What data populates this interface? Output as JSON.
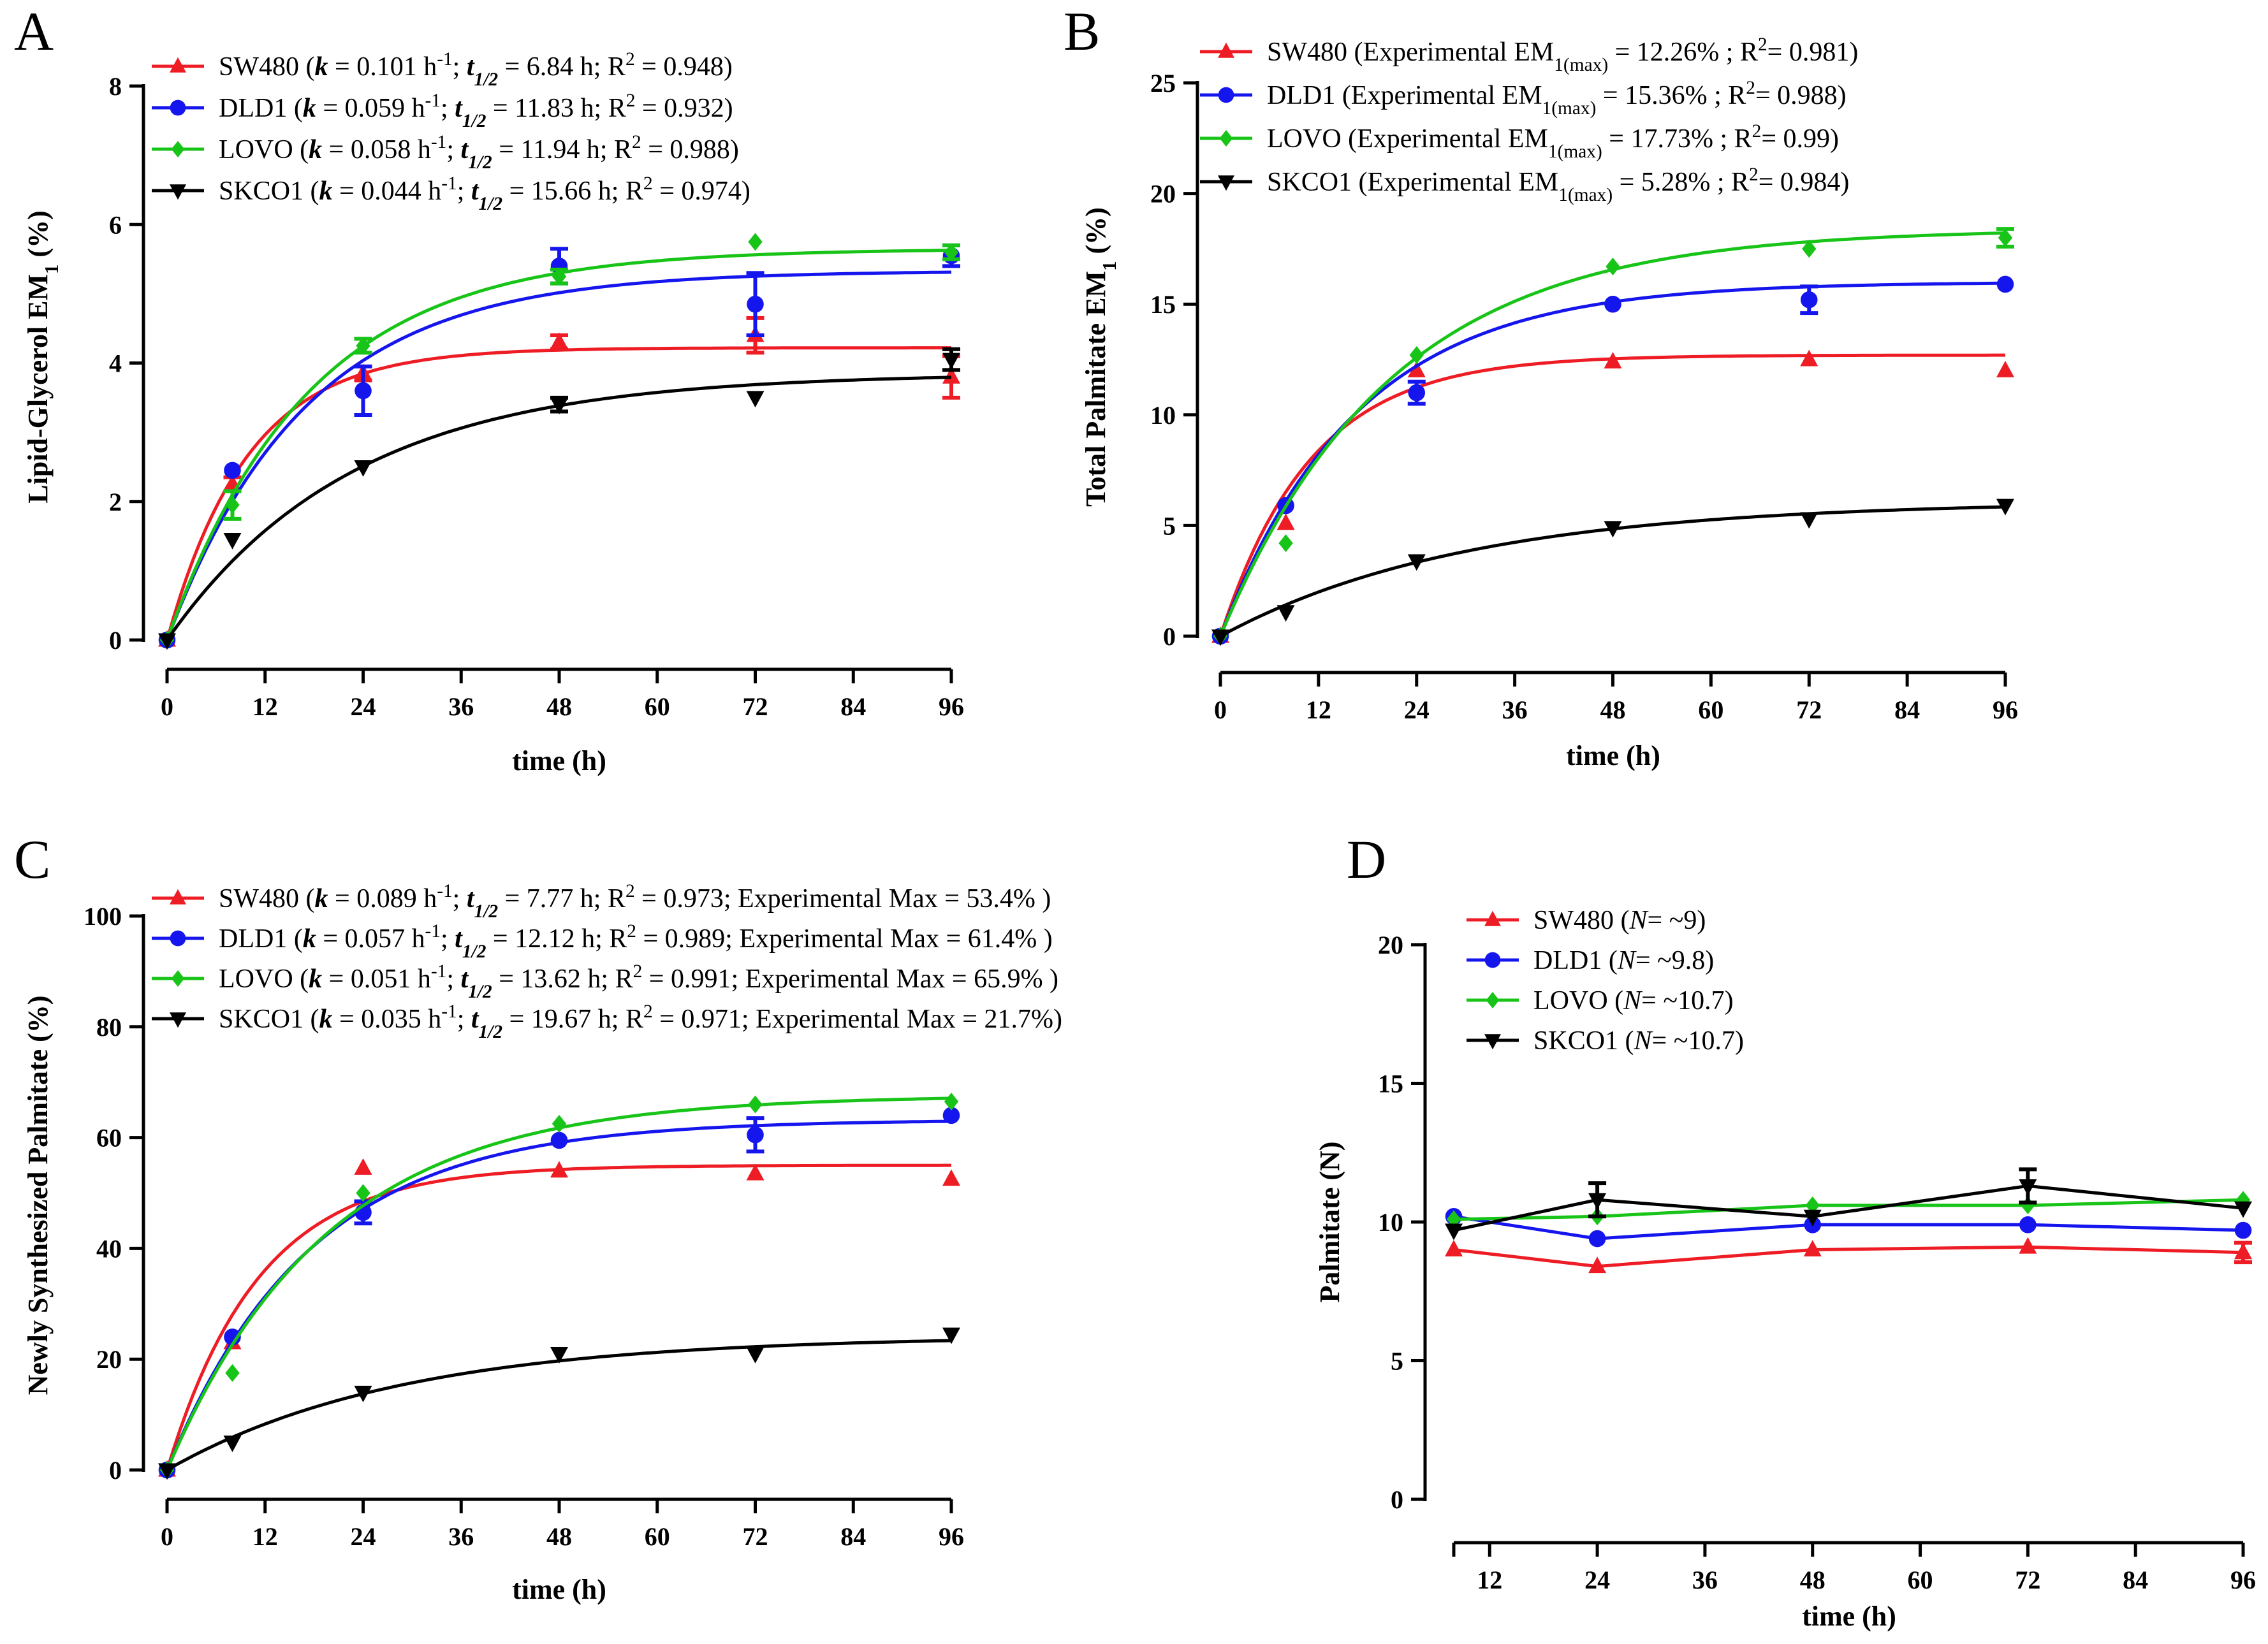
{
  "colors": {
    "SW480": "#ee1c24",
    "DLD1": "#1515ee",
    "LOVO": "#18c418",
    "SKCO1": "#000000"
  },
  "chart_data": [
    {
      "type": "scatter",
      "panel": "A",
      "xlabel": "time (h)",
      "ylabel": "Lipid-Glycerol EM1 (%)",
      "xlim": [
        0,
        96
      ],
      "ylim": [
        0,
        8
      ],
      "xticks": [
        "0",
        "12",
        "24",
        "36",
        "48",
        "60",
        "72",
        "84",
        "96"
      ],
      "yticks": [
        "0",
        "2",
        "4",
        "6",
        "8"
      ],
      "legend_position": "top-left",
      "series": [
        {
          "name": "SW480",
          "marker": "triangle",
          "legend": "SW480 (k = 0.101 h-1; t1/2 = 6.84 h; R2 = 0.948)",
          "x": [
            0,
            8,
            24,
            48,
            72,
            96
          ],
          "values": [
            0,
            2.25,
            3.85,
            4.3,
            4.4,
            3.8
          ],
          "err": [
            0,
            0.1,
            0.1,
            0.1,
            0.25,
            0.3
          ],
          "fit": {
            "model": "one-phase",
            "plateau": 4.22,
            "k": 0.101
          }
        },
        {
          "name": "DLD1",
          "marker": "circle",
          "legend": "DLD1 (k = 0.059 h-1; t1/2 = 11.83 h; R2 = 0.932)",
          "x": [
            0,
            8,
            24,
            48,
            72,
            96
          ],
          "values": [
            0,
            2.45,
            3.6,
            5.4,
            4.85,
            5.55
          ],
          "err": [
            0,
            0,
            0.35,
            0.25,
            0.45,
            0.15
          ],
          "fit": {
            "model": "one-phase",
            "plateau": 5.33,
            "k": 0.059
          }
        },
        {
          "name": "LOVO",
          "marker": "diamond",
          "legend": "LOVO (k = 0.058 h-1; t1/2 = 11.94 h; R2 = 0.988)",
          "x": [
            0,
            8,
            24,
            48,
            72,
            96
          ],
          "values": [
            0,
            1.95,
            4.25,
            5.25,
            5.75,
            5.6
          ],
          "err": [
            0,
            0.2,
            0.1,
            0.1,
            0,
            0.1
          ],
          "fit": {
            "model": "one-phase",
            "plateau": 5.65,
            "k": 0.058
          }
        },
        {
          "name": "SKCO1",
          "marker": "triangle-down",
          "legend": "SKCO1 (k = 0.044 h-1; t1/2 = 15.66 h; R2 = 0.974)",
          "x": [
            0,
            8,
            24,
            48,
            72,
            96
          ],
          "values": [
            0,
            1.45,
            2.5,
            3.4,
            3.5,
            4.05
          ],
          "err": [
            0,
            0,
            0,
            0.1,
            0,
            0.15
          ],
          "fit": {
            "model": "one-phase",
            "plateau": 3.85,
            "k": 0.044
          }
        }
      ]
    },
    {
      "type": "scatter",
      "panel": "B",
      "xlabel": "time (h)",
      "ylabel": "Total Palmitate EM1 (%)",
      "xlim": [
        0,
        96
      ],
      "ylim": [
        0,
        25
      ],
      "xticks": [
        "0",
        "12",
        "24",
        "36",
        "48",
        "60",
        "72",
        "84",
        "96"
      ],
      "yticks": [
        "0",
        "5",
        "10",
        "15",
        "20",
        "25"
      ],
      "legend_position": "top-left",
      "series": [
        {
          "name": "SW480",
          "marker": "triangle",
          "legend": "SW480 (Experimental EM1(max) = 12.26% ; R2= 0.981)",
          "x": [
            0,
            8,
            24,
            48,
            72,
            96
          ],
          "values": [
            0,
            5.1,
            12.0,
            12.4,
            12.5,
            12.0
          ],
          "err": [
            0,
            0,
            0,
            0,
            0,
            0
          ],
          "fit": {
            "model": "one-phase",
            "plateau": 12.7,
            "k": 0.09
          }
        },
        {
          "name": "DLD1",
          "marker": "circle",
          "legend": "DLD1 (Experimental EM1(max) = 15.36% ; R2= 0.988)",
          "x": [
            0,
            8,
            24,
            48,
            72,
            96
          ],
          "values": [
            0,
            5.9,
            11.0,
            15.0,
            15.2,
            15.9
          ],
          "err": [
            0,
            0,
            0.5,
            0,
            0.6,
            0
          ],
          "fit": {
            "model": "one-phase",
            "plateau": 16.0,
            "k": 0.06
          }
        },
        {
          "name": "LOVO",
          "marker": "diamond",
          "legend": "LOVO (Experimental EM1(max) = 17.73% ; R2= 0.99)",
          "x": [
            0,
            8,
            24,
            48,
            72,
            96
          ],
          "values": [
            0,
            4.2,
            12.7,
            16.7,
            17.5,
            18.0
          ],
          "err": [
            0,
            0,
            0,
            0,
            0,
            0.4
          ],
          "fit": {
            "model": "one-phase",
            "plateau": 18.4,
            "k": 0.048
          }
        },
        {
          "name": "SKCO1",
          "marker": "triangle-down",
          "legend": "SKCO1 (Experimental EM1(max) = 5.28% ; R2= 0.984)",
          "x": [
            0,
            8,
            24,
            48,
            72,
            96
          ],
          "values": [
            0,
            1.1,
            3.4,
            4.9,
            5.3,
            5.9
          ],
          "err": [
            0,
            0,
            0,
            0,
            0,
            0
          ],
          "fit": {
            "model": "one-phase",
            "plateau": 6.1,
            "k": 0.033
          }
        }
      ]
    },
    {
      "type": "scatter",
      "panel": "C",
      "xlabel": "time (h)",
      "ylabel": "Newly Synthesized Palmitate (%)",
      "xlim": [
        0,
        96
      ],
      "ylim": [
        0,
        100
      ],
      "xticks": [
        "0",
        "12",
        "24",
        "36",
        "48",
        "60",
        "72",
        "84",
        "96"
      ],
      "yticks": [
        "0",
        "20",
        "40",
        "60",
        "80",
        "100"
      ],
      "legend_position": "top-left",
      "series": [
        {
          "name": "SW480",
          "marker": "triangle",
          "legend": "SW480 (k = 0.089 h-1; t1/2 = 7.77 h; R2 = 0.973; Experimental Max = 53.4% )",
          "x": [
            0,
            8,
            24,
            48,
            72,
            96
          ],
          "values": [
            0,
            23,
            54.5,
            54,
            53.5,
            52.5
          ],
          "err": [
            0,
            0,
            0,
            0,
            0,
            0
          ],
          "fit": {
            "model": "one-phase",
            "plateau": 55.0,
            "k": 0.089
          }
        },
        {
          "name": "DLD1",
          "marker": "circle",
          "legend": "DLD1 (k = 0.057 h-1; t1/2 = 12.12 h; R2 = 0.989; Experimental Max = 61.4% )",
          "x": [
            0,
            8,
            24,
            48,
            72,
            96
          ],
          "values": [
            0,
            24,
            46.5,
            59.5,
            60.5,
            64
          ],
          "err": [
            0,
            0,
            2,
            0,
            3,
            0
          ],
          "fit": {
            "model": "one-phase",
            "plateau": 63.2,
            "k": 0.057
          }
        },
        {
          "name": "LOVO",
          "marker": "diamond",
          "legend": "LOVO (k = 0.051 h-1; t1/2 = 13.62 h; R2 = 0.991; Experimental Max = 65.9% )",
          "x": [
            0,
            8,
            24,
            48,
            72,
            96
          ],
          "values": [
            0,
            17.5,
            50,
            62.5,
            66,
            66.5
          ],
          "err": [
            0,
            0,
            0,
            0,
            0,
            0
          ],
          "fit": {
            "model": "one-phase",
            "plateau": 67.6,
            "k": 0.051
          }
        },
        {
          "name": "SKCO1",
          "marker": "triangle-down",
          "legend": "SKCO1 (k = 0.035 h-1; t1/2 = 19.67 h; R2 = 0.971; Experimental Max = 21.7%)",
          "x": [
            0,
            8,
            24,
            48,
            72,
            96
          ],
          "values": [
            0,
            5,
            14,
            21,
            21,
            24.5
          ],
          "err": [
            0,
            0,
            0,
            0,
            0,
            0
          ],
          "fit": {
            "model": "one-phase",
            "plateau": 24.2,
            "k": 0.035
          }
        }
      ]
    },
    {
      "type": "line",
      "panel": "D",
      "xlabel": "time (h)",
      "ylabel": "Palmitate (N)",
      "xlim": [
        8,
        96
      ],
      "ylim": [
        0,
        20
      ],
      "xticks": [
        "12",
        "24",
        "36",
        "48",
        "60",
        "72",
        "84",
        "96"
      ],
      "yticks": [
        "0",
        "5",
        "10",
        "15",
        "20"
      ],
      "legend_position": "top-left",
      "series": [
        {
          "name": "SW480",
          "marker": "triangle",
          "legend": "SW480 (N= ~9)",
          "x": [
            8,
            24,
            48,
            72,
            96
          ],
          "values": [
            9.0,
            8.4,
            9.0,
            9.1,
            8.9
          ],
          "err": [
            0,
            0,
            0,
            0,
            0.35
          ]
        },
        {
          "name": "DLD1",
          "marker": "circle",
          "legend": "DLD1 (N= ~9.8)",
          "x": [
            8,
            24,
            48,
            72,
            96
          ],
          "values": [
            10.2,
            9.4,
            9.9,
            9.9,
            9.7
          ],
          "err": [
            0,
            0,
            0,
            0,
            0
          ]
        },
        {
          "name": "LOVO",
          "marker": "diamond",
          "legend": "LOVO (N= ~10.7)",
          "x": [
            8,
            24,
            48,
            72,
            96
          ],
          "values": [
            10.1,
            10.2,
            10.6,
            10.6,
            10.8
          ],
          "err": [
            0,
            0,
            0,
            0,
            0
          ]
        },
        {
          "name": "SKCO1",
          "marker": "triangle-down",
          "legend": "SKCO1 (N= ~10.7)",
          "x": [
            8,
            24,
            48,
            72,
            96
          ],
          "values": [
            9.7,
            10.8,
            10.2,
            11.3,
            10.5
          ],
          "err": [
            0,
            0.6,
            0,
            0.6,
            0
          ]
        }
      ]
    }
  ]
}
